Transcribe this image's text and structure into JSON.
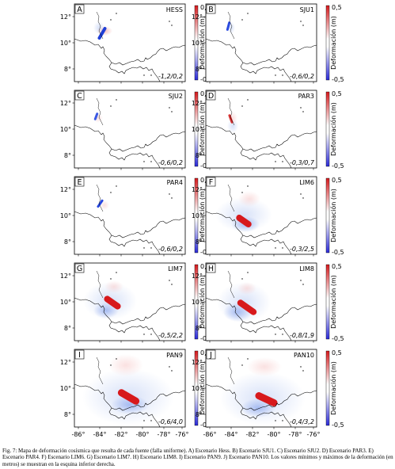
{
  "figure": {
    "colorbar": {
      "label": "Deformación (m)",
      "max_label": "0,5",
      "min_label": "-0,5"
    },
    "lon_ticks": [
      "-86°",
      "-84°",
      "-82°",
      "-80°",
      "-78°",
      "-76°"
    ],
    "lat_ticks": [
      "12°",
      "10°",
      "8°"
    ],
    "panels": [
      {
        "letter": "A",
        "name": "HESS",
        "range": "-1,2/0,2"
      },
      {
        "letter": "B",
        "name": "SJU1",
        "range": "-0,6/0,2"
      },
      {
        "letter": "C",
        "name": "SJU2",
        "range": "-0,6/0,2"
      },
      {
        "letter": "D",
        "name": "PAR3",
        "range": "-0,3/0,7"
      },
      {
        "letter": "E",
        "name": "PAR4",
        "range": "-0,6/0,2"
      },
      {
        "letter": "F",
        "name": "LIM6",
        "range": "-0,3/2,5"
      },
      {
        "letter": "G",
        "name": "LIM7",
        "range": "-0,5/2,2"
      },
      {
        "letter": "H",
        "name": "LIM8",
        "range": "-0,8/1,9"
      },
      {
        "letter": "I",
        "name": "PAN9",
        "range": "-0,6/4,0"
      },
      {
        "letter": "J",
        "name": "PAN10",
        "range": "-0,4/3,2"
      }
    ]
  },
  "caption": "Fig. 7: Mapa de deformación cosísmica que resulta de cada fuente (falla uniforme). A) Escenario Hess. B) Escenario SJU1. C) Escenario SJU2. D) Escenario PAR3. E) Escenario PAR4. F) Escenario LIM6. G) Escenario LIM7. H) Escenario LIM8. I) Escenario PAN9. J) Escenario PAN10. Los valores mínimos y máximos de la deformación (en metros) se muestran en la esquina inferior derecha."
}
